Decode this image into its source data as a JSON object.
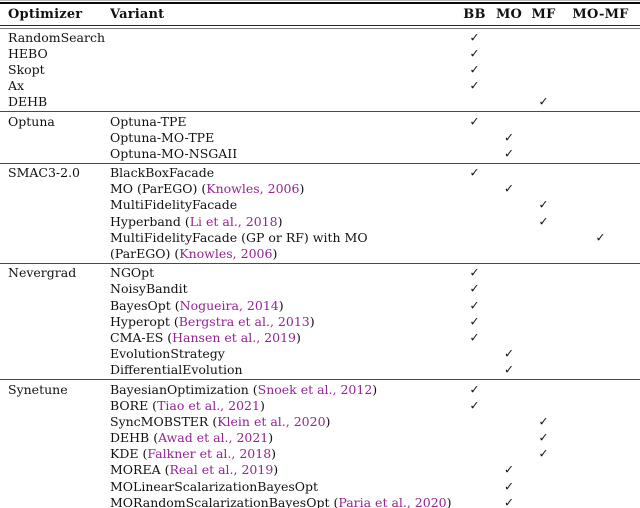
{
  "meta": {
    "cite_color": "#942492",
    "text_color": "#111111",
    "check_glyph": "✓"
  },
  "header": {
    "optimizer": "Optimizer",
    "variant": "Variant",
    "marks": [
      "BB",
      "MO",
      "MF",
      "MO-MF"
    ]
  },
  "sections": [
    {
      "rows": [
        {
          "optimizer": "RandomSearch",
          "variant": [],
          "check": "BB"
        },
        {
          "optimizer": "HEBO",
          "variant": [],
          "check": "BB"
        },
        {
          "optimizer": "Skopt",
          "variant": [],
          "check": "BB"
        },
        {
          "optimizer": "Ax",
          "variant": [],
          "check": "BB"
        },
        {
          "optimizer": "DEHB",
          "variant": [],
          "check": "MF"
        }
      ]
    },
    {
      "rows": [
        {
          "optimizer": "Optuna",
          "variant": [
            {
              "t": "Optuna-TPE"
            }
          ],
          "check": "BB"
        },
        {
          "optimizer": "",
          "variant": [
            {
              "t": "Optuna-MO-TPE"
            }
          ],
          "check": "MO"
        },
        {
          "optimizer": "",
          "variant": [
            {
              "t": "Optuna-MO-NSGAII"
            }
          ],
          "check": "MO"
        }
      ]
    },
    {
      "rows": [
        {
          "optimizer": "SMAC3-2.0",
          "variant": [
            {
              "t": "BlackBoxFacade"
            }
          ],
          "check": "BB"
        },
        {
          "optimizer": "",
          "variant": [
            {
              "t": "MO (ParEGO) ("
            },
            {
              "t": "Knowles, 2006",
              "cite": true
            },
            {
              "t": ")"
            }
          ],
          "check": "MO"
        },
        {
          "optimizer": "",
          "variant": [
            {
              "t": "MultiFidelityFacade"
            }
          ],
          "check": "MF"
        },
        {
          "optimizer": "",
          "variant": [
            {
              "t": "Hyperband ("
            },
            {
              "t": "Li et al., 2018",
              "cite": true
            },
            {
              "t": ")"
            }
          ],
          "check": "MF"
        },
        {
          "optimizer": "",
          "variant": [
            {
              "t": "MultiFidelityFacade (GP or RF) with MO"
            }
          ],
          "check": "MO-MF"
        },
        {
          "optimizer": "",
          "variant": [
            {
              "t": "(ParEGO) ("
            },
            {
              "t": "Knowles, 2006",
              "cite": true
            },
            {
              "t": ")"
            }
          ],
          "check": null
        }
      ]
    },
    {
      "rows": [
        {
          "optimizer": "Nevergrad",
          "variant": [
            {
              "t": "NGOpt"
            }
          ],
          "check": "BB"
        },
        {
          "optimizer": "",
          "variant": [
            {
              "t": "NoisyBandit"
            }
          ],
          "check": "BB"
        },
        {
          "optimizer": "",
          "variant": [
            {
              "t": "BayesOpt ("
            },
            {
              "t": "Nogueira, 2014",
              "cite": true
            },
            {
              "t": ")"
            }
          ],
          "check": "BB"
        },
        {
          "optimizer": "",
          "variant": [
            {
              "t": "Hyperopt ("
            },
            {
              "t": "Bergstra et al., 2013",
              "cite": true
            },
            {
              "t": ")"
            }
          ],
          "check": "BB"
        },
        {
          "optimizer": "",
          "variant": [
            {
              "t": "CMA-ES ("
            },
            {
              "t": "Hansen et al., 2019",
              "cite": true
            },
            {
              "t": ")"
            }
          ],
          "check": "BB"
        },
        {
          "optimizer": "",
          "variant": [
            {
              "t": "EvolutionStrategy"
            }
          ],
          "check": "MO"
        },
        {
          "optimizer": "",
          "variant": [
            {
              "t": "DifferentialEvolution"
            }
          ],
          "check": "MO"
        }
      ]
    },
    {
      "rows": [
        {
          "optimizer": "Synetune",
          "variant": [
            {
              "t": "BayesianOptimization ("
            },
            {
              "t": "Snoek et al., 2012",
              "cite": true
            },
            {
              "t": ")"
            }
          ],
          "check": "BB"
        },
        {
          "optimizer": "",
          "variant": [
            {
              "t": "BORE ("
            },
            {
              "t": "Tiao et al., 2021",
              "cite": true
            },
            {
              "t": ")"
            }
          ],
          "check": "BB"
        },
        {
          "optimizer": "",
          "variant": [
            {
              "t": "SyncMOBSTER ("
            },
            {
              "t": "Klein et al., 2020",
              "cite": true
            },
            {
              "t": ")"
            }
          ],
          "check": "MF"
        },
        {
          "optimizer": "",
          "variant": [
            {
              "t": "DEHB ("
            },
            {
              "t": "Awad et al., 2021",
              "cite": true
            },
            {
              "t": ")"
            }
          ],
          "check": "MF"
        },
        {
          "optimizer": "",
          "variant": [
            {
              "t": "KDE ("
            },
            {
              "t": "Falkner et al., 2018",
              "cite": true
            },
            {
              "t": ")"
            }
          ],
          "check": "MF"
        },
        {
          "optimizer": "",
          "variant": [
            {
              "t": "MOREA ("
            },
            {
              "t": "Real et al., 2019",
              "cite": true
            },
            {
              "t": ")"
            }
          ],
          "check": "MO"
        },
        {
          "optimizer": "",
          "variant": [
            {
              "t": "MOLinearScalarizationBayesOpt"
            }
          ],
          "check": "MO"
        },
        {
          "optimizer": "",
          "variant": [
            {
              "t": "MORandomScalarizationBayesOpt ("
            },
            {
              "t": "Paria et al., 2020",
              "cite": true
            },
            {
              "t": ")"
            }
          ],
          "check": "MO"
        }
      ]
    }
  ]
}
